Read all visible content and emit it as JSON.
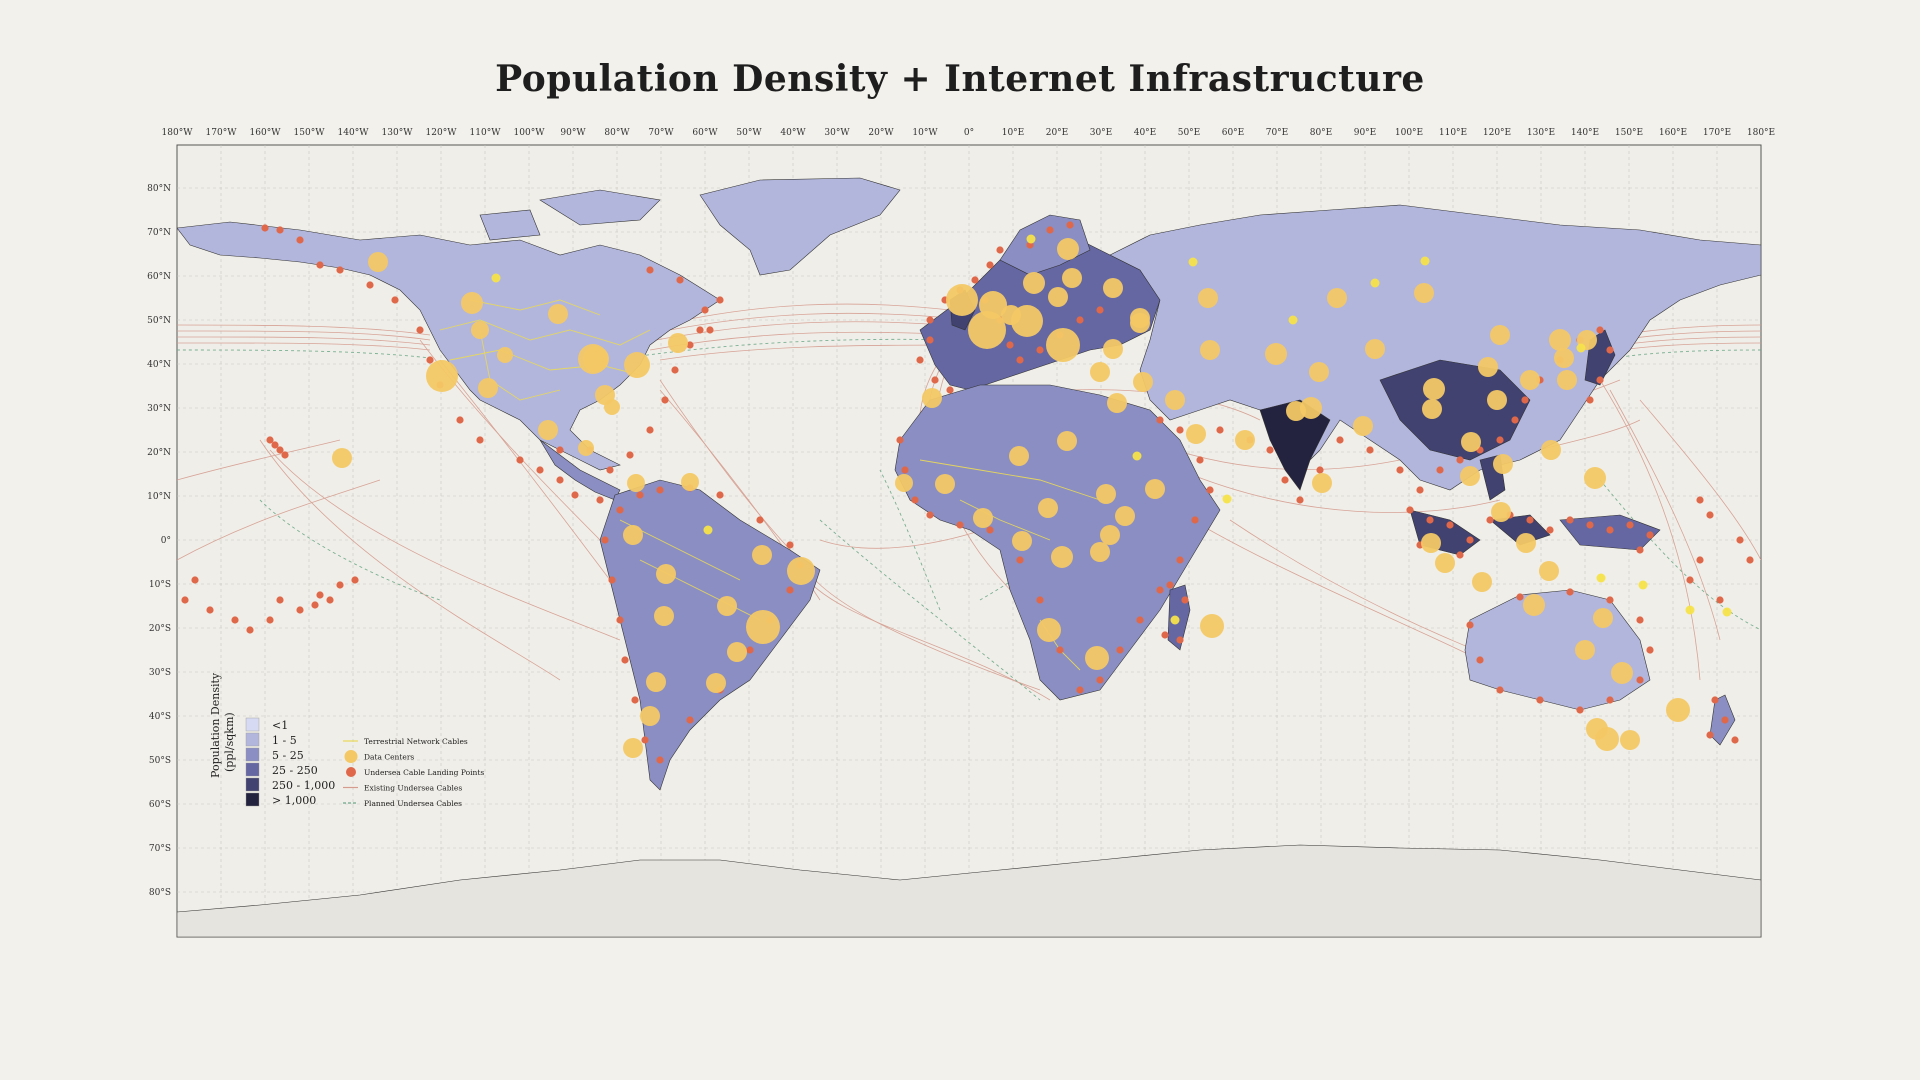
{
  "title": "Population Density + Internet Infrastructure",
  "longitude_labels": [
    "180°W",
    "170°W",
    "160°W",
    "150°W",
    "140°W",
    "130°W",
    "120°W",
    "110°W",
    "100°W",
    "90°W",
    "80°W",
    "70°W",
    "60°W",
    "50°W",
    "40°W",
    "30°W",
    "20°W",
    "10°W",
    "0°",
    "10°E",
    "20°E",
    "30°E",
    "40°E",
    "50°E",
    "60°E",
    "70°E",
    "80°E",
    "90°E",
    "100°E",
    "110°E",
    "120°E",
    "130°E",
    "140°E",
    "150°E",
    "160°E",
    "170°E",
    "180°E"
  ],
  "latitude_labels": [
    "80°N",
    "70°N",
    "60°N",
    "50°N",
    "40°N",
    "30°N",
    "20°N",
    "10°N",
    "0°",
    "10°S",
    "20°S",
    "30°S",
    "40°S",
    "50°S",
    "60°S",
    "70°S",
    "80°S"
  ],
  "legend": {
    "density_title": "Population Density",
    "density_unit": "(ppl/sqkm)",
    "density_classes": [
      {
        "label": "<1",
        "color": "#d6daf2"
      },
      {
        "label": "1 - 5",
        "color": "#b2b6dd"
      },
      {
        "label": "5 - 25",
        "color": "#8a8ec2"
      },
      {
        "label": "25 - 250",
        "color": "#6567a3"
      },
      {
        "label": "250 - 1,000",
        "color": "#41426f"
      },
      {
        "label": "> 1,000",
        "color": "#23233f"
      }
    ],
    "layers": [
      {
        "label": "Terrestrial Network Cables",
        "symbol": "line",
        "color": "#e8d85a"
      },
      {
        "label": "Data Centers",
        "symbol": "circle-large",
        "color": "#f3c865"
      },
      {
        "label": "Undersea Cable Landing Points",
        "symbol": "circle",
        "color": "#e0684a"
      },
      {
        "label": "Existing Undersea Cables",
        "symbol": "line",
        "color": "#d49b8f"
      },
      {
        "label": "Planned Undersea Cables",
        "symbol": "dashed-line",
        "color": "#6ca88a"
      }
    ]
  },
  "colors": {
    "background": "#f3f1ec",
    "ocean": "#f0eee8",
    "land_low": "#b2b6dd",
    "land_high": "#23233f",
    "antarctica": "#e6e4de",
    "data_center": "#f3c865",
    "landing_point": "#e0684a",
    "existing_cable": "#d49b8f",
    "planned_cable": "#6ca88a",
    "terrestrial": "#e8d85a",
    "grid": "#c9c6be"
  }
}
